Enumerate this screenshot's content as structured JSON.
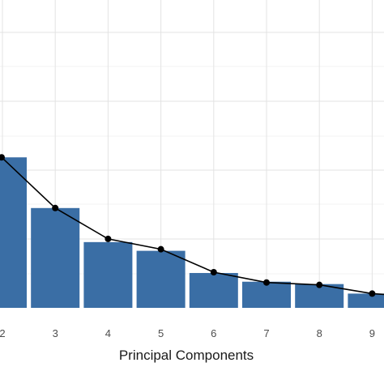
{
  "chart_data": {
    "type": "bar",
    "categories": [
      "2",
      "3",
      "4",
      "5",
      "6",
      "7",
      "8",
      "9"
    ],
    "values": [
      19.0,
      12.6,
      8.3,
      7.2,
      4.4,
      3.3,
      3.0,
      1.8
    ],
    "line_values": [
      19.0,
      12.6,
      8.7,
      7.4,
      4.5,
      3.2,
      2.9,
      1.8
    ],
    "xlabel": "Principal Components",
    "ylabel": "",
    "ylim": [
      0,
      45
    ],
    "grid": true,
    "colors": {
      "bar": "#3a6ea5",
      "line": "#000000",
      "point": "#000000",
      "grid": "#e3e3e3",
      "axis_text": "#4d4d4d"
    }
  }
}
